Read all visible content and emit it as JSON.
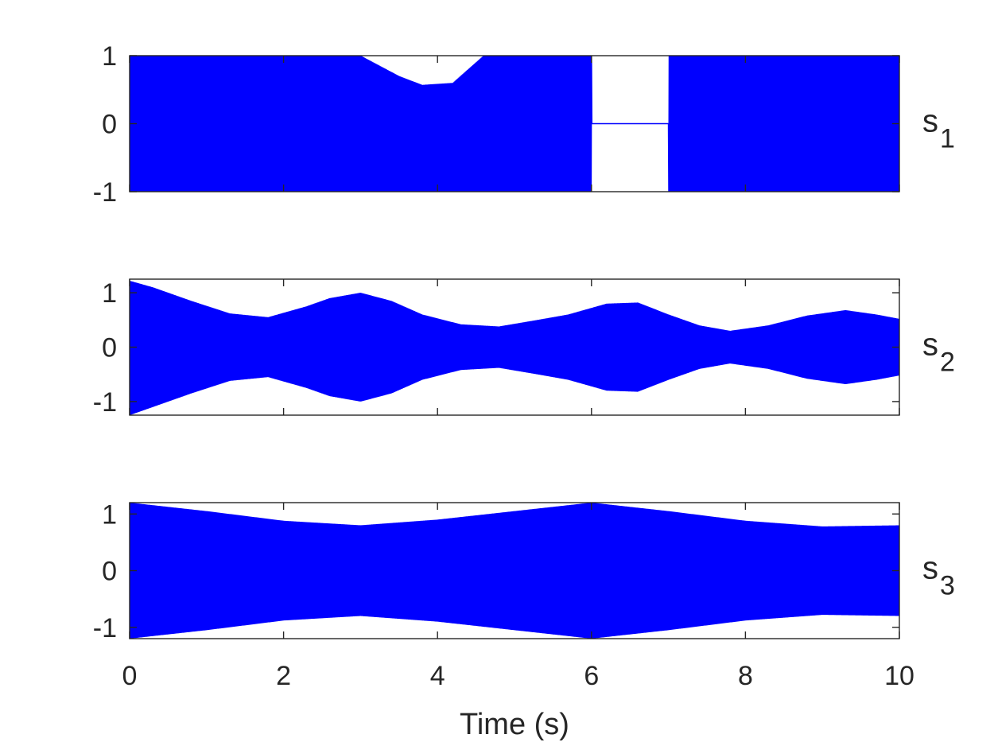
{
  "colors": {
    "signal": "#0000ff",
    "axes": "#262626",
    "background": "#ffffff"
  },
  "chart_data": [
    {
      "type": "line",
      "label_main": "s",
      "label_sub": "1",
      "xlim": [
        0,
        10
      ],
      "ylim": [
        -1,
        1
      ],
      "yticks": [
        -1,
        0,
        1
      ],
      "ytick_labels": [
        "-1",
        "0",
        "1"
      ],
      "grid": false,
      "series": [
        {
          "style": "oscillation",
          "envelope": {
            "x": [
              0,
              0.5,
              1,
              1.5,
              2,
              2.5,
              3,
              3.5,
              3.8,
              4.2,
              4.6,
              5,
              5.5,
              6,
              6.001,
              7,
              7.001,
              7.5,
              8,
              8.5,
              9,
              9.5,
              10
            ],
            "top": [
              1,
              1,
              1,
              1,
              1,
              1,
              1,
              0.7,
              0.57,
              0.6,
              1,
              1,
              1,
              1,
              0,
              0,
              1,
              1,
              1,
              1,
              1,
              1,
              1
            ],
            "bottom": [
              -1,
              -1,
              -1,
              -1,
              -1,
              -1,
              -1,
              -1,
              -1,
              -1,
              -1,
              -1,
              -1,
              -1,
              0,
              0,
              -1,
              -1,
              -1,
              -1,
              -1,
              -1,
              -1
            ]
          }
        }
      ]
    },
    {
      "type": "line",
      "label_main": "s",
      "label_sub": "2",
      "xlim": [
        0,
        10
      ],
      "ylim": [
        -1.25,
        1.25
      ],
      "yticks": [
        -1,
        0,
        1
      ],
      "ytick_labels": [
        "-1",
        "0",
        "1"
      ],
      "grid": false,
      "series": [
        {
          "style": "oscillation",
          "envelope": {
            "x": [
              0,
              0.3,
              0.8,
              1.3,
              1.8,
              2.3,
              2.6,
              3.0,
              3.4,
              3.8,
              4.3,
              4.8,
              5.3,
              5.7,
              6.2,
              6.6,
              7.0,
              7.4,
              7.8,
              8.3,
              8.8,
              9.3,
              9.7,
              10
            ],
            "top": [
              1.22,
              1.1,
              0.85,
              0.62,
              0.55,
              0.75,
              0.9,
              1.0,
              0.85,
              0.6,
              0.42,
              0.38,
              0.5,
              0.6,
              0.8,
              0.82,
              0.6,
              0.4,
              0.3,
              0.4,
              0.58,
              0.68,
              0.6,
              0.52
            ],
            "bottom": [
              -1.25,
              -1.1,
              -0.85,
              -0.62,
              -0.55,
              -0.75,
              -0.9,
              -1.0,
              -0.85,
              -0.6,
              -0.42,
              -0.38,
              -0.5,
              -0.6,
              -0.8,
              -0.82,
              -0.6,
              -0.4,
              -0.3,
              -0.4,
              -0.58,
              -0.68,
              -0.6,
              -0.52
            ]
          }
        }
      ]
    },
    {
      "type": "line",
      "label_main": "s",
      "label_sub": "3",
      "xlim": [
        0,
        10
      ],
      "ylim": [
        -1.2,
        1.2
      ],
      "yticks": [
        -1,
        0,
        1
      ],
      "ytick_labels": [
        "-1",
        "0",
        "1"
      ],
      "grid": false,
      "series": [
        {
          "style": "oscillation",
          "envelope": {
            "x": [
              0,
              1,
              2,
              3,
              4,
              5,
              6,
              7,
              8,
              9,
              10
            ],
            "top": [
              1.2,
              1.05,
              0.88,
              0.8,
              0.9,
              1.05,
              1.2,
              1.05,
              0.88,
              0.78,
              0.8
            ],
            "bottom": [
              -1.2,
              -1.05,
              -0.88,
              -0.8,
              -0.9,
              -1.05,
              -1.2,
              -1.05,
              -0.88,
              -0.78,
              -0.8
            ]
          }
        }
      ]
    }
  ],
  "x_axis": {
    "label": "Time (s)",
    "ticks": [
      0,
      2,
      4,
      6,
      8,
      10
    ],
    "tick_labels": [
      "0",
      "2",
      "4",
      "6",
      "8",
      "10"
    ]
  }
}
